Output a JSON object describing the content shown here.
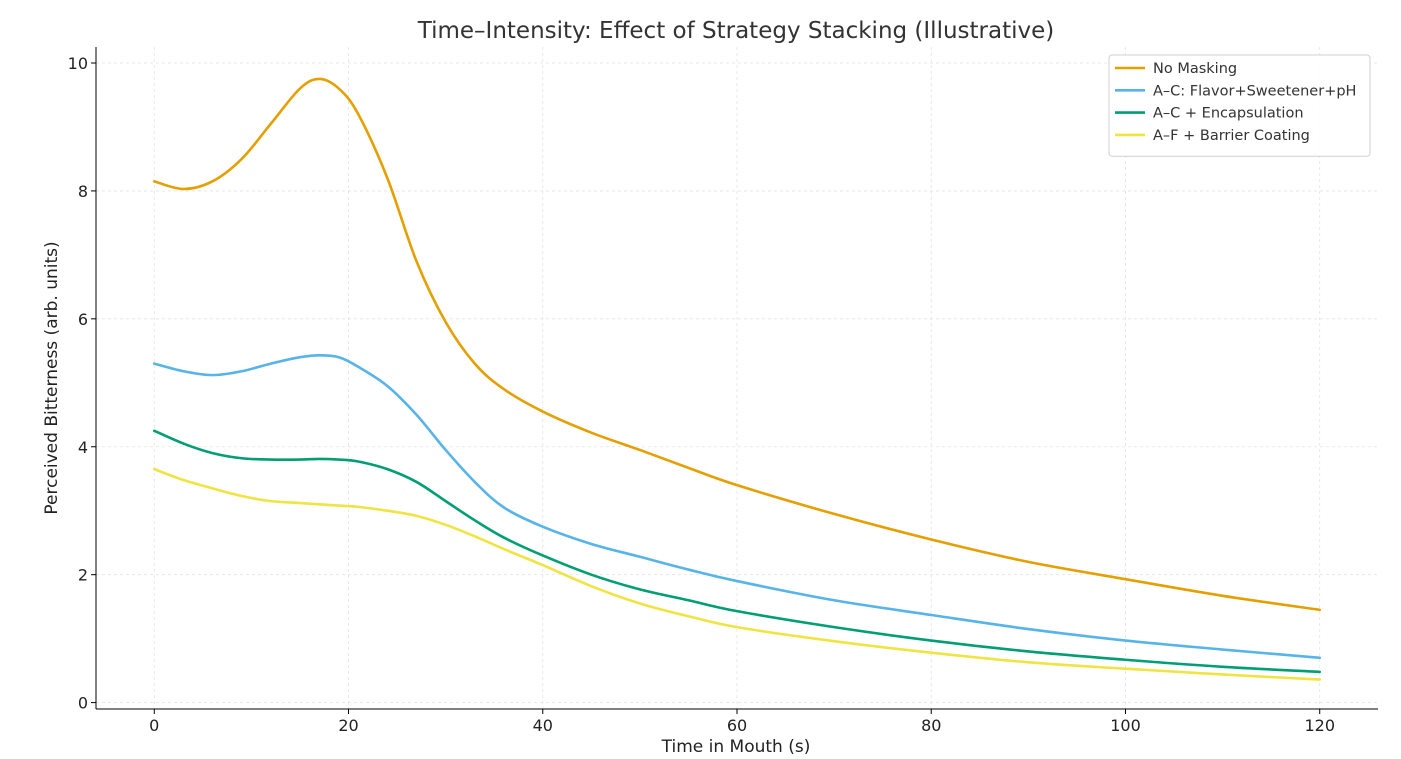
{
  "chart_data": {
    "type": "line",
    "title": "Time–Intensity: Effect of Strategy Stacking (Illustrative)",
    "xlabel": "Time in Mouth (s)",
    "ylabel": "Perceived Bitterness (arb. units)",
    "xlim": [
      -6,
      126
    ],
    "ylim": [
      -0.1,
      10.25
    ],
    "xticks": [
      0,
      20,
      40,
      60,
      80,
      100,
      120
    ],
    "yticks": [
      0,
      2,
      4,
      6,
      8,
      10
    ],
    "grid": true,
    "legend_position": "top-right",
    "x": [
      0,
      3,
      6,
      9,
      12,
      15,
      17,
      19,
      21,
      24,
      27,
      30,
      33,
      36,
      40,
      45,
      50,
      55,
      60,
      70,
      80,
      90,
      100,
      110,
      120
    ],
    "series": [
      {
        "name": "No Masking",
        "color": "#E69F00",
        "values": [
          8.15,
          8.03,
          8.15,
          8.5,
          9.05,
          9.6,
          9.75,
          9.6,
          9.2,
          8.2,
          6.9,
          5.95,
          5.3,
          4.9,
          4.55,
          4.22,
          3.95,
          3.67,
          3.4,
          2.95,
          2.55,
          2.2,
          1.93,
          1.67,
          1.45
        ]
      },
      {
        "name": "A–C: Flavor+Sweetener+pH",
        "color": "#56B4E9",
        "values": [
          5.3,
          5.18,
          5.12,
          5.18,
          5.3,
          5.4,
          5.43,
          5.4,
          5.25,
          4.95,
          4.5,
          3.95,
          3.45,
          3.05,
          2.75,
          2.48,
          2.28,
          2.08,
          1.9,
          1.6,
          1.37,
          1.15,
          0.97,
          0.83,
          0.7
        ]
      },
      {
        "name": "A–C + Encapsulation",
        "color": "#009E73",
        "values": [
          4.25,
          4.05,
          3.9,
          3.82,
          3.8,
          3.8,
          3.81,
          3.8,
          3.77,
          3.65,
          3.45,
          3.15,
          2.85,
          2.58,
          2.3,
          2.0,
          1.77,
          1.6,
          1.43,
          1.18,
          0.97,
          0.8,
          0.67,
          0.56,
          0.48
        ]
      },
      {
        "name": "A–F + Barrier Coating",
        "color": "#F0E442",
        "values": [
          3.65,
          3.48,
          3.35,
          3.23,
          3.15,
          3.12,
          3.1,
          3.08,
          3.06,
          3.0,
          2.92,
          2.78,
          2.6,
          2.4,
          2.15,
          1.82,
          1.55,
          1.35,
          1.18,
          0.96,
          0.78,
          0.63,
          0.53,
          0.44,
          0.36
        ]
      }
    ]
  }
}
